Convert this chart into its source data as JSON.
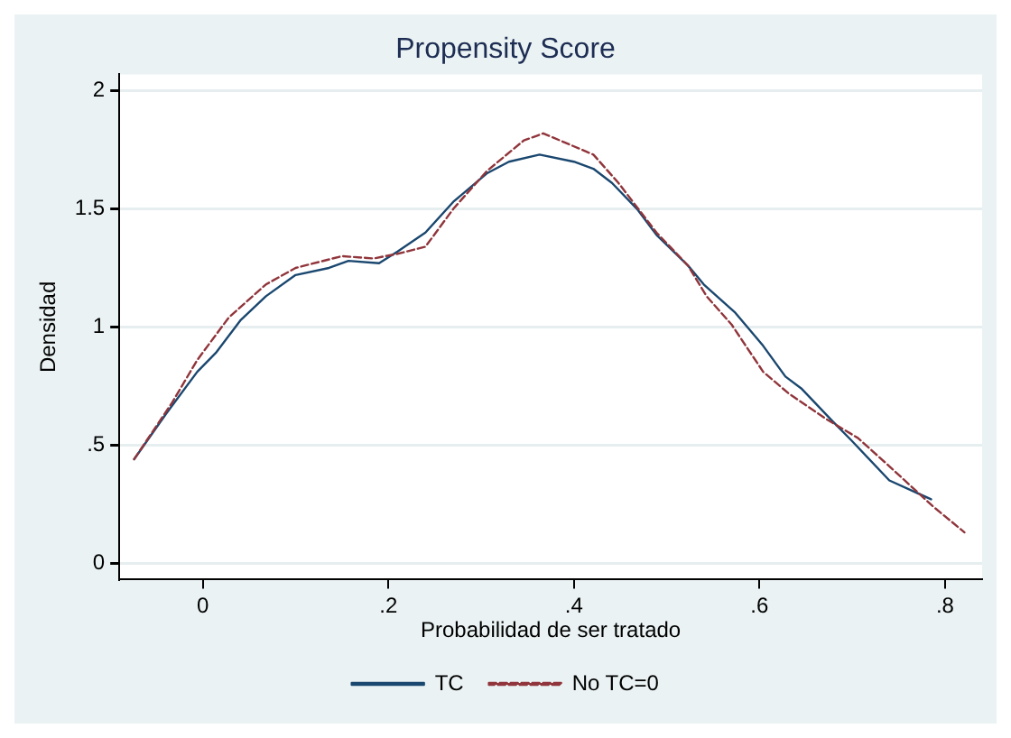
{
  "chart_data": {
    "type": "line",
    "title": "Propensity Score",
    "xlabel": "Probabilidad de ser tratado",
    "ylabel": "Densidad",
    "xlim": [
      -0.09,
      0.84
    ],
    "xticks": [
      0,
      {
        "value": 0.2,
        "label": ".2"
      },
      {
        "value": 0.4,
        "label": ".4"
      },
      {
        "value": 0.6,
        "label": ".6"
      },
      {
        "value": 0.8,
        "label": ".8"
      }
    ],
    "ylim": [
      -0.07,
      2.07
    ],
    "yticks": [
      0,
      {
        "value": 0.5,
        "label": ".5"
      },
      1,
      1.5,
      2
    ],
    "grid": "y",
    "legend": "bottom",
    "marker": "none",
    "series": [
      {
        "name": "TC",
        "color": "#1a476f",
        "line_style": "solid",
        "x": [
          -0.074,
          -0.04,
          -0.006,
          0.014,
          0.041,
          0.068,
          0.1,
          0.136,
          0.157,
          0.19,
          0.21,
          0.24,
          0.27,
          0.306,
          0.33,
          0.363,
          0.4,
          0.421,
          0.441,
          0.468,
          0.489,
          0.523,
          0.54,
          0.574,
          0.604,
          0.628,
          0.645,
          0.679,
          0.699,
          0.74,
          0.785
        ],
        "values": [
          0.44,
          0.63,
          0.81,
          0.89,
          1.03,
          1.13,
          1.22,
          1.25,
          1.28,
          1.27,
          1.32,
          1.4,
          1.53,
          1.65,
          1.7,
          1.73,
          1.7,
          1.67,
          1.61,
          1.5,
          1.39,
          1.26,
          1.18,
          1.06,
          0.92,
          0.79,
          0.74,
          0.6,
          0.52,
          0.35,
          0.27
        ]
      },
      {
        "name": "No TC=0",
        "color": "#90353b",
        "line_style": "dashed",
        "x": [
          -0.074,
          -0.033,
          -0.006,
          0.028,
          0.068,
          0.1,
          0.15,
          0.184,
          0.21,
          0.24,
          0.27,
          0.306,
          0.346,
          0.367,
          0.421,
          0.448,
          0.489,
          0.523,
          0.543,
          0.57,
          0.604,
          0.631,
          0.672,
          0.706,
          0.74,
          0.787,
          0.821
        ],
        "values": [
          0.44,
          0.68,
          0.86,
          1.04,
          1.18,
          1.25,
          1.3,
          1.29,
          1.31,
          1.34,
          1.5,
          1.66,
          1.79,
          1.82,
          1.73,
          1.61,
          1.4,
          1.26,
          1.13,
          1.01,
          0.81,
          0.72,
          0.61,
          0.53,
          0.41,
          0.24,
          0.13
        ]
      }
    ]
  }
}
